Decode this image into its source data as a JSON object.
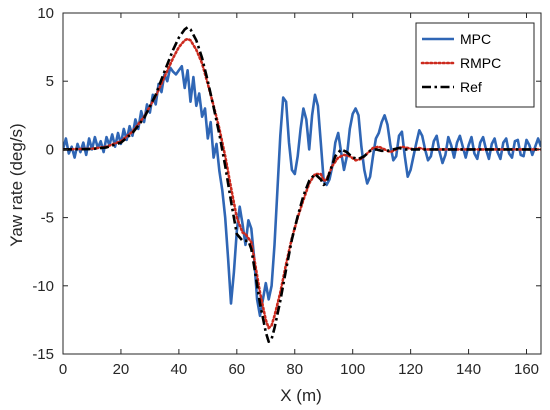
{
  "chart_data": {
    "type": "line",
    "title": "",
    "xlabel": "X (m)",
    "ylabel": "Yaw rate (deg/s)",
    "xlim": [
      0,
      165
    ],
    "ylim": [
      -15,
      10
    ],
    "xticks": [
      0,
      20,
      40,
      60,
      80,
      100,
      120,
      140,
      160
    ],
    "yticks": [
      -15,
      -10,
      -5,
      0,
      5,
      10
    ],
    "grid": false,
    "legend_position": "top-right",
    "series": [
      {
        "name": "MPC",
        "color": "#2f66b5",
        "style": "solid",
        "points": [
          [
            0,
            0
          ],
          [
            1,
            0.8
          ],
          [
            2,
            -0.3
          ],
          [
            3,
            0.2
          ],
          [
            4,
            -0.6
          ],
          [
            5,
            0.4
          ],
          [
            6,
            -0.2
          ],
          [
            7,
            0.5
          ],
          [
            8,
            -0.4
          ],
          [
            9,
            0.8
          ],
          [
            10,
            0
          ],
          [
            11,
            0.9
          ],
          [
            12,
            0.1
          ],
          [
            13,
            0.6
          ],
          [
            14,
            -0.2
          ],
          [
            15,
            0.9
          ],
          [
            16,
            0.3
          ],
          [
            17,
            1.1
          ],
          [
            18,
            0.2
          ],
          [
            19,
            1.2
          ],
          [
            20,
            0.4
          ],
          [
            21,
            1.5
          ],
          [
            22,
            0.7
          ],
          [
            23,
            1.7
          ],
          [
            24,
            1
          ],
          [
            25,
            2.2
          ],
          [
            26,
            1.5
          ],
          [
            27,
            2.8
          ],
          [
            28,
            2
          ],
          [
            29,
            3.3
          ],
          [
            30,
            2.7
          ],
          [
            31,
            4
          ],
          [
            32,
            3.3
          ],
          [
            33,
            4.8
          ],
          [
            34,
            4.2
          ],
          [
            35,
            5.5
          ],
          [
            36,
            5
          ],
          [
            37,
            6
          ],
          [
            38,
            5.7
          ],
          [
            39,
            5.5
          ],
          [
            40,
            5.8
          ],
          [
            41,
            6.1
          ],
          [
            42,
            4.5
          ],
          [
            43,
            5.8
          ],
          [
            44,
            3.5
          ],
          [
            45,
            5.3
          ],
          [
            46,
            3.2
          ],
          [
            47,
            4.1
          ],
          [
            48,
            2.4
          ],
          [
            49,
            3
          ],
          [
            50,
            0.8
          ],
          [
            51,
            2
          ],
          [
            52,
            -0.6
          ],
          [
            53,
            0.4
          ],
          [
            54,
            -1.6
          ],
          [
            55,
            -3
          ],
          [
            56,
            -5
          ],
          [
            57,
            -8
          ],
          [
            58,
            -11.3
          ],
          [
            59,
            -9
          ],
          [
            60,
            -6
          ],
          [
            61,
            -4.2
          ],
          [
            62,
            -5.5
          ],
          [
            63,
            -7
          ],
          [
            64,
            -5.2
          ],
          [
            65,
            -5.8
          ],
          [
            66,
            -8
          ],
          [
            67,
            -11
          ],
          [
            68,
            -12.2
          ],
          [
            69,
            -11
          ],
          [
            70,
            -9.8
          ],
          [
            71,
            -11
          ],
          [
            72,
            -10
          ],
          [
            73,
            -7
          ],
          [
            74,
            -3
          ],
          [
            75,
            1
          ],
          [
            76,
            3.8
          ],
          [
            77,
            3.5
          ],
          [
            78,
            0.5
          ],
          [
            79,
            -1.5
          ],
          [
            80,
            -1.8
          ],
          [
            81,
            -0.5
          ],
          [
            82,
            1.5
          ],
          [
            83,
            3
          ],
          [
            84,
            2.2
          ],
          [
            85,
            0
          ],
          [
            86,
            2.5
          ],
          [
            87,
            4
          ],
          [
            88,
            3.2
          ],
          [
            89,
            0.5
          ],
          [
            90,
            -2.3
          ],
          [
            91,
            -2.6
          ],
          [
            92,
            -2.2
          ],
          [
            93,
            -1.2
          ],
          [
            94,
            0.5
          ],
          [
            95,
            1.2
          ],
          [
            96,
            -0.2
          ],
          [
            97,
            -1.5
          ],
          [
            98,
            -0.5
          ],
          [
            99,
            1.5
          ],
          [
            100,
            2.6
          ],
          [
            101,
            3
          ],
          [
            102,
            2.5
          ],
          [
            103,
            0.2
          ],
          [
            104,
            -1.5
          ],
          [
            105,
            -2.5
          ],
          [
            106,
            -2
          ],
          [
            107,
            -0.5
          ],
          [
            108,
            0.8
          ],
          [
            109,
            1.2
          ],
          [
            110,
            2
          ],
          [
            111,
            2.5
          ],
          [
            112,
            1.8
          ],
          [
            113,
            0.3
          ],
          [
            114,
            -0.8
          ],
          [
            115,
            -0.5
          ],
          [
            116,
            1
          ],
          [
            117,
            1.3
          ],
          [
            118,
            -0.5
          ],
          [
            119,
            -2
          ],
          [
            120,
            -1.5
          ],
          [
            121,
            -0.5
          ],
          [
            122,
            0.5
          ],
          [
            123,
            1.4
          ],
          [
            124,
            1
          ],
          [
            125,
            0
          ],
          [
            126,
            -0.8
          ],
          [
            127,
            -0.5
          ],
          [
            128,
            0.6
          ],
          [
            129,
            1
          ],
          [
            130,
            -0.2
          ],
          [
            131,
            -1
          ],
          [
            132,
            -0.4
          ],
          [
            133,
            0.9
          ],
          [
            134,
            0.3
          ],
          [
            135,
            -0.6
          ],
          [
            136,
            0.5
          ],
          [
            137,
            1
          ],
          [
            138,
            0.2
          ],
          [
            139,
            -0.6
          ],
          [
            140,
            0.3
          ],
          [
            141,
            0.9
          ],
          [
            142,
            -0.3
          ],
          [
            143,
            -0.7
          ],
          [
            144,
            0.5
          ],
          [
            145,
            0.9
          ],
          [
            146,
            0
          ],
          [
            147,
            -0.7
          ],
          [
            148,
            0.4
          ],
          [
            149,
            0.8
          ],
          [
            150,
            -0.2
          ],
          [
            151,
            -0.7
          ],
          [
            152,
            0.5
          ],
          [
            153,
            0.8
          ],
          [
            154,
            -0.3
          ],
          [
            155,
            -0.6
          ],
          [
            156,
            0.6
          ],
          [
            157,
            0.7
          ],
          [
            158,
            -0.4
          ],
          [
            159,
            -0.5
          ],
          [
            160,
            0.7
          ],
          [
            161,
            0.3
          ],
          [
            162,
            -0.4
          ],
          [
            163,
            0.2
          ],
          [
            164,
            0.8
          ],
          [
            165,
            0.2
          ]
        ]
      },
      {
        "name": "RMPC",
        "color": "#cc2a1e",
        "style": "dotted",
        "points": [
          [
            0,
            0
          ],
          [
            10,
            0.05
          ],
          [
            15,
            0.2
          ],
          [
            20,
            0.6
          ],
          [
            24,
            1.3
          ],
          [
            28,
            2.4
          ],
          [
            32,
            3.9
          ],
          [
            35,
            5.3
          ],
          [
            38,
            6.7
          ],
          [
            40,
            7.5
          ],
          [
            42,
            8
          ],
          [
            43,
            8.1
          ],
          [
            44,
            8
          ],
          [
            46,
            7.3
          ],
          [
            48,
            6.3
          ],
          [
            50,
            4.8
          ],
          [
            52,
            3.2
          ],
          [
            54,
            1.5
          ],
          [
            56,
            -0.5
          ],
          [
            58,
            -2.8
          ],
          [
            60,
            -5
          ],
          [
            62,
            -6.1
          ],
          [
            63,
            -6.2
          ],
          [
            64,
            -6.5
          ],
          [
            65,
            -6.8
          ],
          [
            66,
            -8
          ],
          [
            68,
            -10.5
          ],
          [
            70,
            -12.5
          ],
          [
            71,
            -13.1
          ],
          [
            72,
            -12.9
          ],
          [
            73,
            -12.2
          ],
          [
            75,
            -10.5
          ],
          [
            77,
            -8.4
          ],
          [
            79,
            -6.5
          ],
          [
            81,
            -5
          ],
          [
            83,
            -3.7
          ],
          [
            85,
            -2.5
          ],
          [
            87,
            -1.8
          ],
          [
            89,
            -1.8
          ],
          [
            90,
            -2.3
          ],
          [
            91,
            -2.2
          ],
          [
            93,
            -1.2
          ],
          [
            95,
            -0.6
          ],
          [
            97,
            -0.4
          ],
          [
            99,
            -0.5
          ],
          [
            101,
            -0.8
          ],
          [
            103,
            -0.7
          ],
          [
            105,
            -0.3
          ],
          [
            107,
            0.1
          ],
          [
            109,
            0.2
          ],
          [
            111,
            0
          ],
          [
            113,
            -0.2
          ],
          [
            115,
            0
          ],
          [
            117,
            0.2
          ],
          [
            119,
            0.1
          ],
          [
            121,
            0
          ],
          [
            123,
            0.1
          ],
          [
            125,
            0
          ],
          [
            130,
            0
          ],
          [
            165,
            0
          ]
        ]
      },
      {
        "name": "Ref",
        "color": "#000000",
        "style": "dashdot",
        "points": [
          [
            0,
            0
          ],
          [
            10,
            0.03
          ],
          [
            15,
            0.15
          ],
          [
            20,
            0.5
          ],
          [
            24,
            1.2
          ],
          [
            28,
            2.3
          ],
          [
            32,
            4
          ],
          [
            35,
            5.7
          ],
          [
            38,
            7.3
          ],
          [
            40,
            8.2
          ],
          [
            42,
            8.8
          ],
          [
            43,
            8.95
          ],
          [
            44,
            8.8
          ],
          [
            46,
            8
          ],
          [
            48,
            6.7
          ],
          [
            50,
            5
          ],
          [
            52,
            3.1
          ],
          [
            54,
            1.1
          ],
          [
            56,
            -1.2
          ],
          [
            58,
            -3.8
          ],
          [
            60,
            -6.2
          ],
          [
            62,
            -6.7
          ],
          [
            63,
            -6.7
          ],
          [
            64,
            -6.7
          ],
          [
            65,
            -7.3
          ],
          [
            66,
            -8.6
          ],
          [
            68,
            -11.3
          ],
          [
            70,
            -13.4
          ],
          [
            71,
            -14.1
          ],
          [
            72,
            -13.9
          ],
          [
            73,
            -13.1
          ],
          [
            75,
            -11.1
          ],
          [
            77,
            -8.8
          ],
          [
            79,
            -6.6
          ],
          [
            81,
            -4.9
          ],
          [
            83,
            -3.4
          ],
          [
            85,
            -2.3
          ],
          [
            87,
            -1.8
          ],
          [
            89,
            -2.2
          ],
          [
            90,
            -2.6
          ],
          [
            91,
            -2.4
          ],
          [
            92,
            -1.7
          ],
          [
            94,
            -0.5
          ],
          [
            96,
            0
          ],
          [
            98,
            -0.2
          ],
          [
            100,
            -0.6
          ],
          [
            102,
            -0.7
          ],
          [
            104,
            -0.5
          ],
          [
            106,
            -0.1
          ],
          [
            108,
            0
          ],
          [
            110,
            -0.1
          ],
          [
            112,
            -0.1
          ],
          [
            114,
            0
          ],
          [
            116,
            0.1
          ],
          [
            118,
            0
          ],
          [
            120,
            0
          ],
          [
            165,
            0
          ]
        ]
      }
    ]
  }
}
